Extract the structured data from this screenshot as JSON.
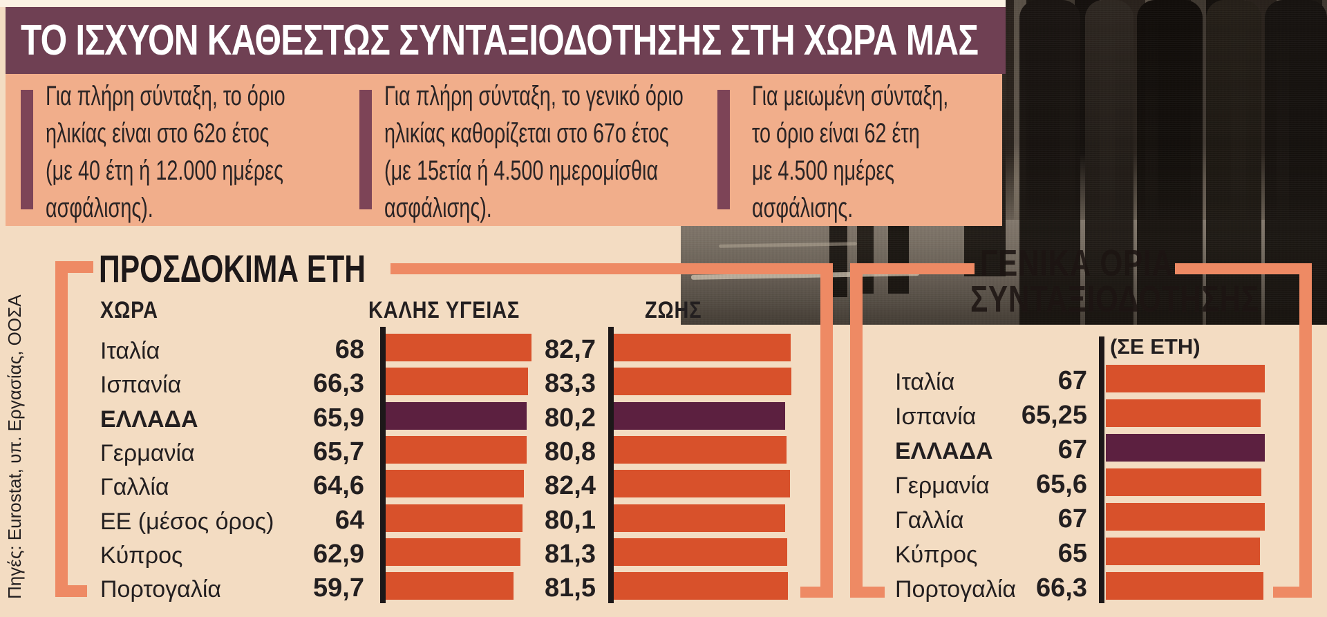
{
  "header": {
    "title": "ΤΟ ΙΣΧΥΟΝ ΚΑΘΕΣΤΩΣ ΣΥΝΤΑΞΙΟΔΟΤΗΣΗΣ ΣΤΗ ΧΩΡΑ ΜΑΣ"
  },
  "info_boxes": [
    {
      "lines": [
        "Για πλήρη σύνταξη, το όριο",
        "ηλικίας είναι στο 62ο έτος",
        "(με 40 έτη ή 12.000 ημέρες",
        "ασφάλισης)."
      ]
    },
    {
      "lines": [
        "Για πλήρη σύνταξη, το γενικό όριο",
        "ηλικίας καθορίζεται στο 67ο έτος",
        "(με 15ετία ή 4.500 ημερομίσθια",
        "ασφάλισης)."
      ]
    },
    {
      "lines": [
        "Για μειωμένη σύνταξη,",
        "το όριο είναι 62 έτη",
        "με 4.500 ημέρες",
        "ασφάλισης."
      ]
    }
  ],
  "source_note": "Πηγές: Eurostat, υπ. Εργασίας, ΟΟΣΑ",
  "colors": {
    "header_maroon": "#6f4053",
    "accent_maroon": "#7d4457",
    "salmon_box": "#f1ae8b",
    "peach_background": "#f3dcc2",
    "bar_orange": "#d8512b",
    "highlight_purple": "#5c2040",
    "bracket_orange": "#ee8a64",
    "text_black": "#231f20"
  },
  "chart_data": [
    {
      "type": "bar",
      "title": "ΠΡΟΣΔΟΚΙΜΑ ΕΤΗ",
      "country_column_header": "ΧΩΡΑ",
      "categories": [
        "Ιταλία",
        "Ισπανία",
        "ΕΛΛΑΔΑ",
        "Γερμανία",
        "Γαλλία",
        "ΕΕ (μέσος όρος)",
        "Κύπρος",
        "Πορτογαλία"
      ],
      "series": [
        {
          "name": "ΚΑΛΗΣ ΥΓΕΙΑΣ",
          "values": [
            68,
            66.3,
            65.9,
            65.7,
            64.6,
            64,
            62.9,
            59.7
          ],
          "display": [
            "68",
            "66,3",
            "65,9",
            "65,7",
            "64,6",
            "64",
            "62,9",
            "59,7"
          ]
        },
        {
          "name": "ΖΩΗΣ",
          "values": [
            82.7,
            83.3,
            80.2,
            80.8,
            82.4,
            80.1,
            81.3,
            81.5
          ],
          "display": [
            "82,7",
            "83,3",
            "80,2",
            "80,8",
            "82,4",
            "80,1",
            "81,3",
            "81,5"
          ]
        }
      ],
      "highlight_category": "ΕΛΛΑΔΑ",
      "legend_position": "none",
      "grid": false,
      "xlabel": "",
      "ylabel": ""
    },
    {
      "type": "bar",
      "title": "ΓΕΝΙΚΑ ΟΡΙΑ ΣΥΝΤΑΞΙΟΔΟΤΗΣΗΣ",
      "title_lines": [
        "ΓΕΝΙΚΑ ΟΡΙΑ",
        "ΣΥΝΤΑΞΙΟΔΟΤΗΣΗΣ"
      ],
      "unit_label": "(ΣΕ ΕΤΗ)",
      "categories": [
        "Ιταλία",
        "Ισπανία",
        "ΕΛΛΑΔΑ",
        "Γερμανία",
        "Γαλλία",
        "Κύπρος",
        "Πορτογαλία"
      ],
      "values": [
        67,
        65.25,
        67,
        65.6,
        67,
        65,
        66.3
      ],
      "display": [
        "67",
        "65,25",
        "67",
        "65,6",
        "67",
        "65",
        "66,3"
      ],
      "highlight_category": "ΕΛΛΑΔΑ",
      "legend_position": "none",
      "grid": false,
      "xlabel": "",
      "ylabel": ""
    }
  ]
}
